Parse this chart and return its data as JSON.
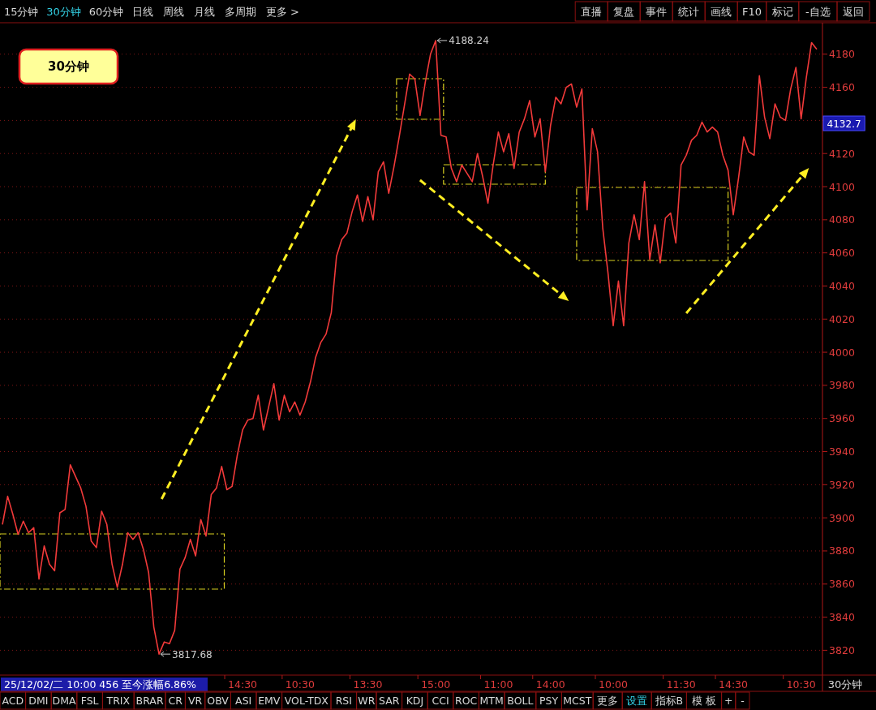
{
  "chart_data": {
    "type": "line",
    "color": "#f23a3a",
    "grid": "y",
    "line_style": "solid",
    "marker": "none",
    "ylim": [
      3805,
      4199
    ],
    "yticks": [
      3820,
      3840,
      3860,
      3880,
      3900,
      3920,
      3940,
      3960,
      3980,
      4000,
      4020,
      4040,
      4060,
      4080,
      4100,
      4120,
      {
        "value": 4140,
        "label": null
      },
      4160,
      4180
    ],
    "categories": [
      null,
      null,
      null,
      null,
      null,
      null,
      null,
      null,
      null,
      null,
      null,
      null,
      null,
      null,
      null,
      null,
      null,
      null,
      null,
      null,
      null,
      null,
      null,
      null,
      null,
      null,
      null,
      null,
      null,
      null,
      null,
      null,
      null,
      null,
      null,
      null,
      null,
      null,
      null,
      null,
      null,
      null,
      null,
      null,
      null,
      null,
      "14:30",
      null,
      null,
      null,
      null,
      null,
      null,
      null,
      null,
      null,
      null,
      "10:30",
      null,
      null,
      null,
      null,
      null,
      null,
      null,
      null,
      null,
      null,
      null,
      null,
      "13:30",
      null,
      null,
      null,
      null,
      null,
      null,
      null,
      null,
      null,
      null,
      null,
      null,
      "15:00",
      null,
      null,
      null,
      null,
      null,
      null,
      null,
      null,
      null,
      null,
      null,
      "11:00",
      null,
      null,
      null,
      null,
      null,
      null,
      null,
      null,
      null,
      "14:00",
      null,
      null,
      null,
      null,
      null,
      null,
      null,
      null,
      null,
      null,
      null,
      "10:00",
      null,
      null,
      null,
      null,
      null,
      null,
      null,
      null,
      null,
      null,
      null,
      null,
      "11:30",
      null,
      null,
      null,
      null,
      null,
      null,
      null,
      null,
      null,
      "14:30",
      null,
      null,
      null,
      null,
      null,
      null,
      null,
      null,
      null,
      null,
      null,
      null,
      "10:30",
      null,
      null,
      null
    ],
    "values": [
      3896,
      3913,
      3902,
      3890,
      3898,
      3891,
      3894,
      3863,
      3883,
      3872,
      3868,
      3903,
      3905,
      3932,
      3925,
      3918,
      3907,
      3886,
      3882,
      3904,
      3896,
      3872,
      3858,
      3872,
      3891,
      3887,
      3891,
      3881,
      3867,
      3834,
      3817.68,
      3825,
      3824,
      3832,
      3869,
      3876,
      3887,
      3877,
      3899,
      3889,
      3914,
      3918,
      3931,
      3917,
      3919,
      3938,
      3953,
      3959,
      3960,
      3974,
      3953,
      3967,
      3981,
      3959,
      3974,
      3964,
      3970,
      3962,
      3970,
      3982,
      3997,
      4006,
      4011,
      4024,
      4058,
      4068,
      4072,
      4085,
      4095,
      4079,
      4094,
      4080,
      4109,
      4115,
      4096,
      4112,
      4130,
      4149,
      4168,
      4165,
      4143,
      4163,
      4180,
      4188.24,
      4131,
      4130,
      4111,
      4103,
      4113,
      4108,
      4103,
      4120,
      4106,
      4090,
      4113,
      4133,
      4121,
      4132,
      4111,
      4133,
      4141,
      4152,
      4130,
      4141,
      4109,
      4137,
      4154,
      4150,
      4160,
      4162,
      4148,
      4159,
      4086,
      4135,
      4121,
      4075,
      4048,
      4016,
      4043,
      4016,
      4066,
      4083,
      4068,
      4103,
      4056,
      4077,
      4054,
      4081,
      4084,
      4066,
      4113,
      4119,
      4128,
      4131,
      4139,
      4133,
      4136,
      4133,
      4119,
      4110,
      4083,
      4105,
      4130,
      4121,
      4119,
      4167,
      4142,
      4129,
      4150,
      4142,
      4140,
      4159,
      4172,
      4141,
      4166,
      4187,
      4183
    ],
    "annotations": [
      "30分钟",
      "4188.24",
      "3817.68",
      "4132.7",
      "25/12/02/二 10:00 456 至今涨幅6.86%",
      "30分钟",
      "15分钟",
      "30分钟",
      "60分钟",
      "日线",
      "周线",
      "月线",
      "多周期",
      "更多 >",
      "直播",
      "复盘",
      "事件",
      "统计",
      "画线",
      "F10",
      "标记",
      "-自选",
      "返回",
      "ACD",
      "DMI",
      "DMA",
      "FSL",
      "TRIX",
      "BRAR",
      "CR",
      "VR",
      "OBV",
      "ASI",
      "EMV",
      "VOL-TDX",
      "RSI",
      "WR",
      "SAR",
      "KDJ",
      "CCI",
      "ROC",
      "MTM",
      "BOLL",
      "PSY",
      "MCST",
      "更多",
      "设置",
      "指标B",
      "模 板",
      "+",
      "-"
    ]
  }
}
